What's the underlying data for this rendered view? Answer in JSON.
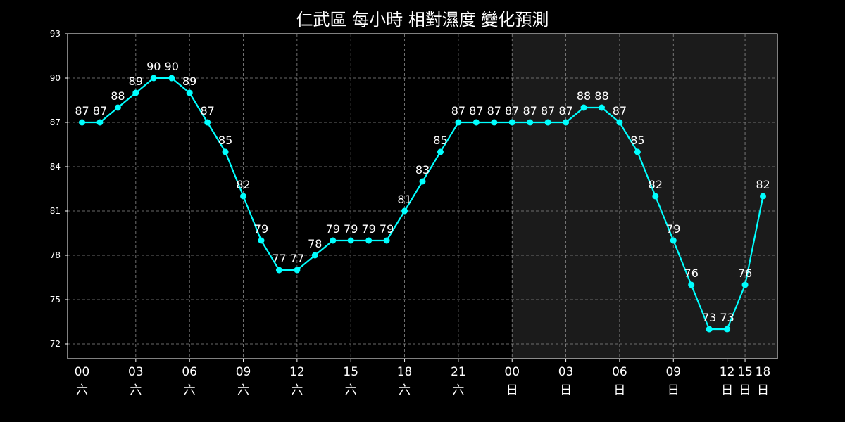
{
  "chart_data": {
    "type": "line",
    "title": "仁武區 每小時 相對濕度 變化預測",
    "xlabel": "",
    "ylabel": "",
    "ylim": [
      71,
      93
    ],
    "yticks": [
      72,
      75,
      78,
      81,
      84,
      87,
      90,
      93
    ],
    "grid": true,
    "colors": {
      "background": "#000000",
      "shaded_region": "#1b1b1b",
      "line": "#00ffff",
      "grid": "#8a8a8a",
      "text": "#ffffff"
    },
    "shaded_range": {
      "from_index": 24,
      "to_index": 38
    },
    "series": [
      {
        "values": [
          87,
          87,
          88,
          89,
          90,
          90,
          89,
          87,
          85,
          82,
          79,
          77,
          77,
          78,
          79,
          79,
          79,
          79,
          81,
          83,
          85,
          87,
          87,
          87,
          87,
          87,
          87,
          87,
          88,
          88,
          87,
          85,
          82,
          79,
          76,
          73,
          73,
          76,
          82
        ]
      }
    ],
    "xticks": [
      {
        "index": 0,
        "hour": "00",
        "day": "六"
      },
      {
        "index": 3,
        "hour": "03",
        "day": "六"
      },
      {
        "index": 6,
        "hour": "06",
        "day": "六"
      },
      {
        "index": 9,
        "hour": "09",
        "day": "六"
      },
      {
        "index": 12,
        "hour": "12",
        "day": "六"
      },
      {
        "index": 15,
        "hour": "15",
        "day": "六"
      },
      {
        "index": 18,
        "hour": "18",
        "day": "六"
      },
      {
        "index": 21,
        "hour": "21",
        "day": "六"
      },
      {
        "index": 24,
        "hour": "00",
        "day": "日"
      },
      {
        "index": 27,
        "hour": "03",
        "day": "日"
      },
      {
        "index": 30,
        "hour": "06",
        "day": "日"
      },
      {
        "index": 33,
        "hour": "09",
        "day": "日"
      },
      {
        "index": 36,
        "hour": "12",
        "day": "日"
      },
      {
        "index": 37,
        "hour": "15",
        "day": "日"
      },
      {
        "index": 38,
        "hour": "18",
        "day": "日"
      }
    ]
  }
}
